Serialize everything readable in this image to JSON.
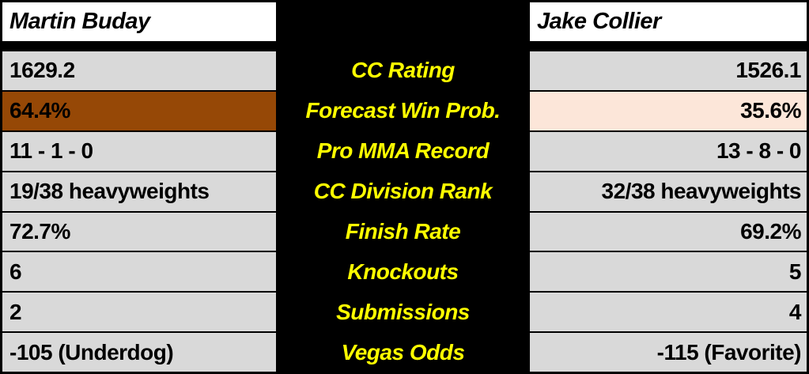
{
  "chart_data": {
    "type": "table",
    "header": {
      "left": "Martin Buday",
      "center": "",
      "right": "Jake Collier"
    },
    "rows": [
      {
        "stat": "CC Rating",
        "left": "1629.2",
        "right": "1526.1"
      },
      {
        "stat": "Forecast Win Prob.",
        "left": "64.4%",
        "right": "35.6%",
        "left_bg": "#964806",
        "right_bg": "#FCE6D9"
      },
      {
        "stat": "Pro MMA Record",
        "left": "11 - 1 - 0",
        "right": "13 - 8 - 0"
      },
      {
        "stat": "CC Division Rank",
        "left": "19/38 heavyweights",
        "right": "32/38 heavyweights"
      },
      {
        "stat": "Finish Rate",
        "left": "72.7%",
        "right": "69.2%"
      },
      {
        "stat": "Knockouts",
        "left": "6",
        "right": "5"
      },
      {
        "stat": "Submissions",
        "left": "2",
        "right": "4"
      },
      {
        "stat": "Vegas Odds",
        "left": "-105 (Underdog)",
        "right": "-115 (Favorite)"
      }
    ]
  },
  "colors": {
    "table_background": "#000000",
    "header_cell_bg": "#FFFFFF",
    "value_cell_bg": "#D9D9D9",
    "stat_label_text": "#FFFF00",
    "win_prob_highlight_left": "#964806",
    "win_prob_highlight_right": "#FCE6D9"
  }
}
